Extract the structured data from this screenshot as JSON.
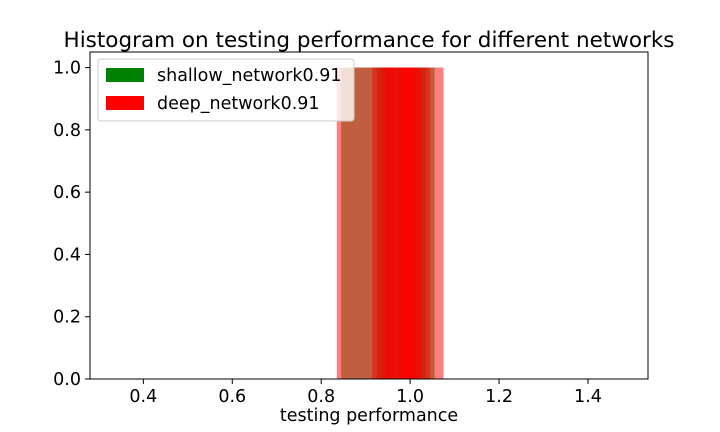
{
  "chart_data": {
    "type": "bar",
    "title": "Histogram on testing performance for different networks",
    "xlabel": "testing performance",
    "ylabel": "",
    "xlim": [
      0.28,
      1.535
    ],
    "ylim": [
      0.0,
      1.05
    ],
    "x_ticks": [
      0.4,
      0.6,
      0.8,
      1.0,
      1.2,
      1.4
    ],
    "x_tick_labels": [
      "0.4",
      "0.6",
      "0.8",
      "1.0",
      "1.2",
      "1.4"
    ],
    "y_ticks": [
      0.0,
      0.2,
      0.4,
      0.6,
      0.8,
      1.0
    ],
    "y_tick_labels": [
      "0.0",
      "0.2",
      "0.4",
      "0.6",
      "0.8",
      "1.0"
    ],
    "legend_position": "top-left",
    "series": [
      {
        "name": "shallow_network0.91",
        "color": "#008000",
        "opacity": 0.5,
        "bars": [
          {
            "x0": 0.845,
            "x1": 0.955,
            "height": 1.0
          },
          {
            "x0": 0.925,
            "x1": 1.035,
            "height": 1.0
          },
          {
            "x0": 0.945,
            "x1": 1.055,
            "height": 1.0
          }
        ]
      },
      {
        "name": "deep_network0.91",
        "color": "#ff0000",
        "opacity": 0.5,
        "bars": [
          {
            "x0": 0.835,
            "x1": 0.965,
            "height": 1.0
          },
          {
            "x0": 0.915,
            "x1": 1.005,
            "height": 1.0
          },
          {
            "x0": 0.935,
            "x1": 1.025,
            "height": 1.0
          },
          {
            "x0": 0.955,
            "x1": 1.045,
            "height": 1.0
          },
          {
            "x0": 0.975,
            "x1": 1.075,
            "height": 1.0
          },
          {
            "x0": 0.985,
            "x1": 1.015,
            "height": 1.0
          }
        ]
      }
    ]
  }
}
